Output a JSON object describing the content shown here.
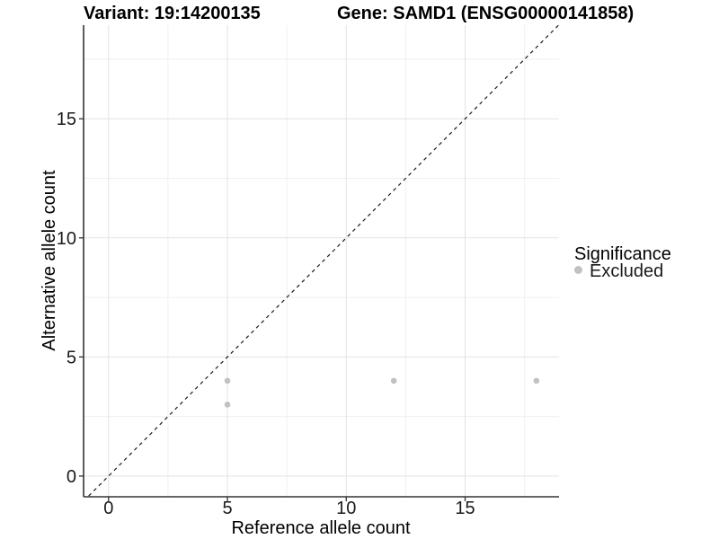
{
  "titles": {
    "left": "Variant: 19:14200135",
    "right": "Gene: SAMD1 (ENSG00000141858)"
  },
  "axes": {
    "x_label": "Reference allele count",
    "y_label": "Alternative allele count"
  },
  "legend": {
    "title": "Significance",
    "items": [
      {
        "label": "Excluded",
        "color": "#c1c1c1"
      }
    ]
  },
  "colors": {
    "background": "#ffffff",
    "grid_major": "#e3e3e3",
    "grid_minor": "#f0f0f0",
    "axis_line": "#333333",
    "tick_mark": "#333333",
    "tick_text": "#1a1a1a",
    "point": "#c1c1c1",
    "reference_line": "#1a1a1a"
  },
  "chart_data": {
    "type": "scatter",
    "title_left": "Variant: 19:14200135",
    "title_right": "Gene: SAMD1 (ENSG00000141858)",
    "xlabel": "Reference allele count",
    "ylabel": "Alternative allele count",
    "xlim": [
      -1.05,
      18.95
    ],
    "ylim": [
      -0.87,
      18.93
    ],
    "x_major_ticks": [
      0,
      5,
      10,
      15
    ],
    "y_major_ticks": [
      0,
      5,
      10,
      15
    ],
    "x_minor_ticks": [
      2.5,
      7.5,
      12.5,
      17.5
    ],
    "y_minor_ticks": [
      2.5,
      7.5,
      12.5,
      17.5
    ],
    "grid": true,
    "series": [
      {
        "name": "Excluded",
        "color": "#c1c1c1",
        "points": [
          [
            5,
            3
          ],
          [
            5,
            4
          ],
          [
            12,
            4
          ],
          [
            18,
            4
          ]
        ]
      }
    ],
    "reference_line": {
      "type": "identity",
      "style": "dashed",
      "from": [
        -1.05,
        -1.05
      ],
      "to": [
        18.95,
        18.95
      ]
    },
    "legend": {
      "title": "Significance",
      "position": "right"
    }
  }
}
